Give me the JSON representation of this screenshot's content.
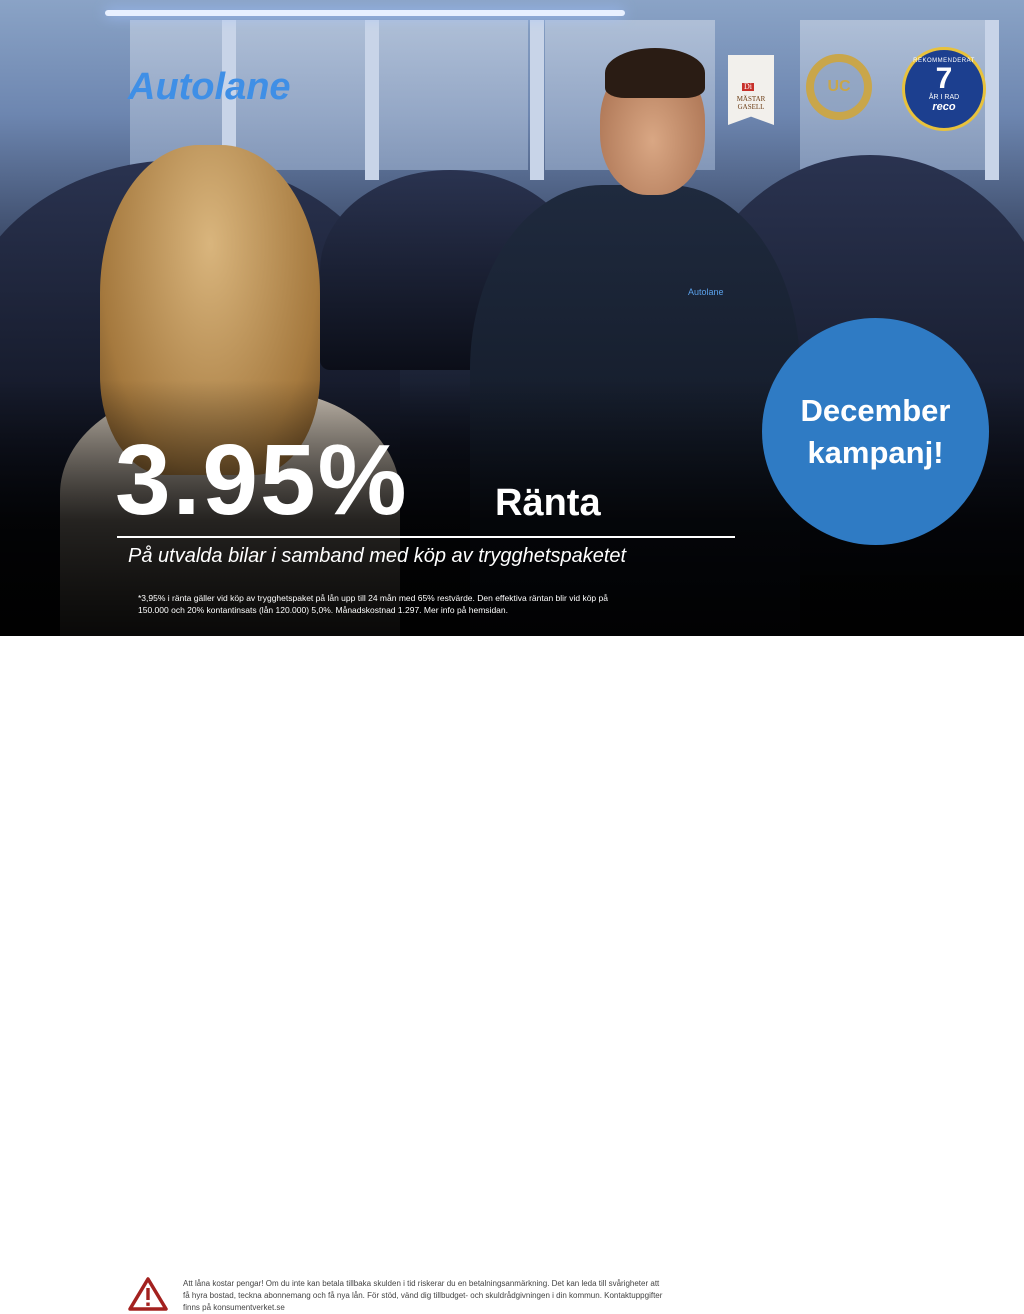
{
  "brand": {
    "logo_text": "Autolane",
    "vest_logo": "Autolane"
  },
  "badges": {
    "gasell": {
      "label_top": "Di",
      "label": "MÄSTAR GASELL"
    },
    "uc": {
      "label": "UC"
    },
    "reco": {
      "top": "REKOMMENDERAT",
      "number": "7",
      "bottom": "ÅR I RAD",
      "brand": "reco"
    }
  },
  "campaign": {
    "line1": "December",
    "line2": "kampanj!",
    "color": "#2f7bc4"
  },
  "offer": {
    "rate": "3.95%",
    "rate_label": "Ränta",
    "subtitle": "På utvalda bilar i samband med köp av trygghetspaketet",
    "fine_print": "*3,95% i ränta gäller vid köp av trygghetspaket på lån upp till 24 mån med 65% restvärde. Den effektiva räntan blir vid köp på 150.000 och 20% kontantinsats (lån 120.000) 5,0%. Månadskostnad 1.297. Mer info på hemsidan."
  },
  "footer": {
    "icon": "warning-triangle-icon",
    "warning_color": "#a3211f",
    "text": "Att låna kostar pengar! Om du inte kan betala tillbaka skulden i tid riskerar du en betalningsanmärkning. Det kan leda till svårigheter att få hyra bostad, teckna abonnemang och få nya lån. För stöd, vänd dig tillbudget- och skuldrådgivningen i din kommun. Kontaktuppgifter finns på konsumentverket.se"
  }
}
